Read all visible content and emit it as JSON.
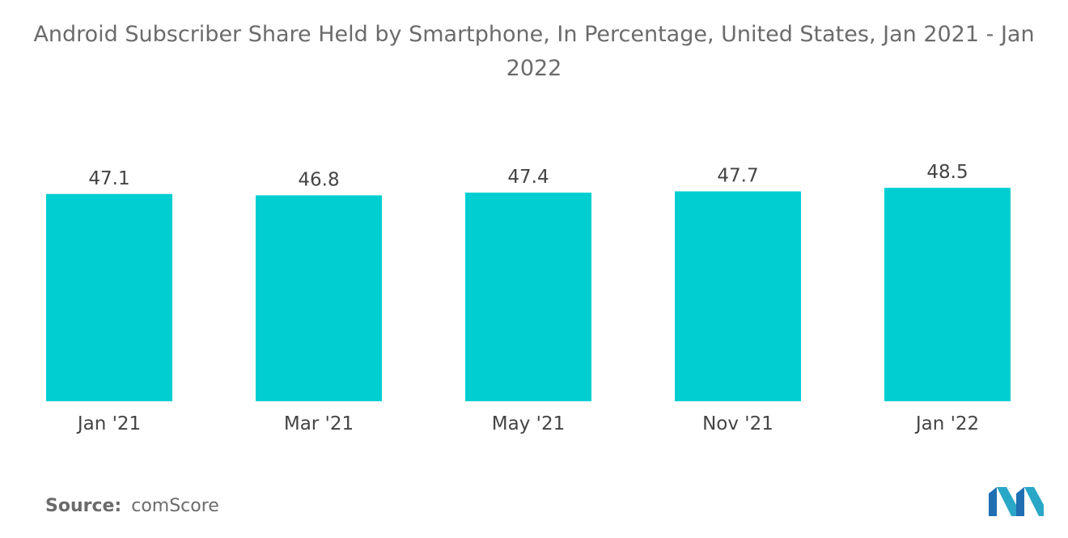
{
  "title": "Android Subscriber Share Held by Smartphone, In Percentage, United States, Jan 2021 - Jan 2022",
  "source": {
    "label": "Source:",
    "value": "comScore"
  },
  "colors": {
    "bar": "#00CED1",
    "text": "#555555"
  },
  "chart_data": {
    "type": "bar",
    "title": "Android Subscriber Share Held by Smartphone, In Percentage, United States, Jan 2021 - Jan 2022",
    "categories": [
      "Jan '21",
      "Mar '21",
      "May '21",
      "Nov '21",
      "Jan '22"
    ],
    "values": [
      47.1,
      46.8,
      47.4,
      47.7,
      48.5
    ],
    "data_labels": [
      "47.1",
      "46.8",
      "47.4",
      "47.7",
      "48.5"
    ],
    "xlabel": "",
    "ylabel": "",
    "grid": false,
    "legend": "none"
  }
}
